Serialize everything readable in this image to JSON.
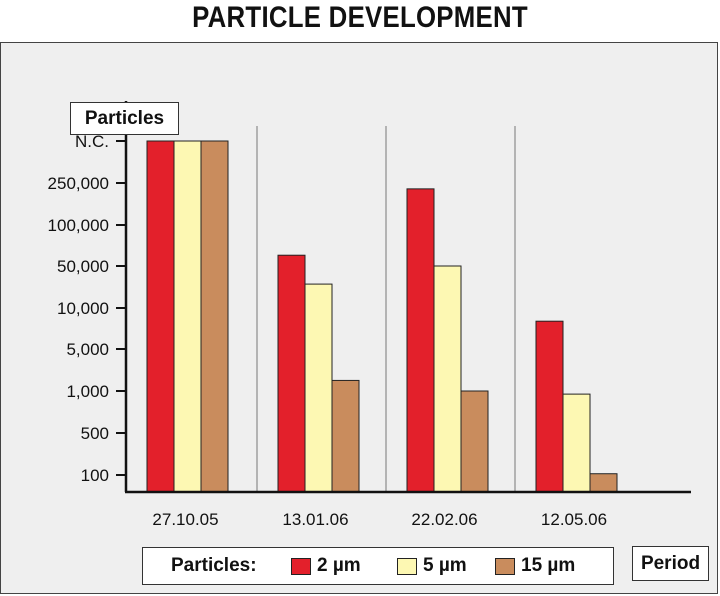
{
  "chart_data": {
    "type": "bar",
    "title": "PARTICLE DEVELOPMENT",
    "ylabel": "Particles",
    "xlabel": "Period",
    "y_axis_scale": "ordinal-log",
    "y_ticks": [
      "N.C.",
      "250,000",
      "100,000",
      "50,000",
      "10,000",
      "5,000",
      "1,000",
      "500",
      "100"
    ],
    "categories": [
      "27.10.05",
      "13.01.06",
      "22.02.06",
      "12.05.06"
    ],
    "legend_title": "Particles:",
    "legend_position": "bottom",
    "grid": "vertical separators between categories",
    "series": [
      {
        "name": "2 µm",
        "color": "#e3202b",
        "values": [
          "N.C.",
          60000,
          220000,
          8000
        ]
      },
      {
        "name": "5 µm",
        "color": "#fdf8b3",
        "values": [
          "N.C.",
          25000,
          50000,
          950
        ]
      },
      {
        "name": "15 µm",
        "color": "#c98c5d",
        "values": [
          "N.C.",
          1500,
          1000,
          105
        ]
      }
    ]
  }
}
